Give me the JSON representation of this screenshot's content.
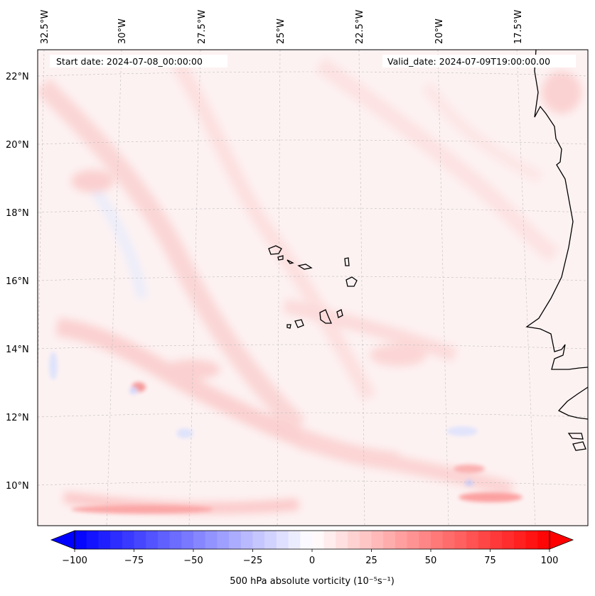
{
  "map": {
    "start_date_text": "Start date: 2024-07-08_00:00:00",
    "valid_date_text": "Valid_date: 2024-07-09T19:00:00.00",
    "lon_labels": [
      "32.5°W",
      "30°W",
      "27.5°W",
      "25°W",
      "22.5°W",
      "20°W",
      "17.5°W"
    ],
    "lat_labels": [
      "22°N",
      "20°N",
      "18°N",
      "16°N",
      "14°N",
      "12°N",
      "10°N"
    ],
    "grid": true,
    "projection": "conic (slanted meridians)"
  },
  "colorbar": {
    "label": "500 hPa absolute vorticity (10⁻⁵s⁻¹)",
    "ticks": [
      "−100",
      "−75",
      "−50",
      "−25",
      "0",
      "25",
      "50",
      "75",
      "100"
    ],
    "range": [
      -100,
      100
    ],
    "levels": 40,
    "colormap": "bwr",
    "color_low": "#0000ff",
    "color_mid": "#ffffff",
    "color_high": "#ff0000",
    "extend": "both"
  }
}
